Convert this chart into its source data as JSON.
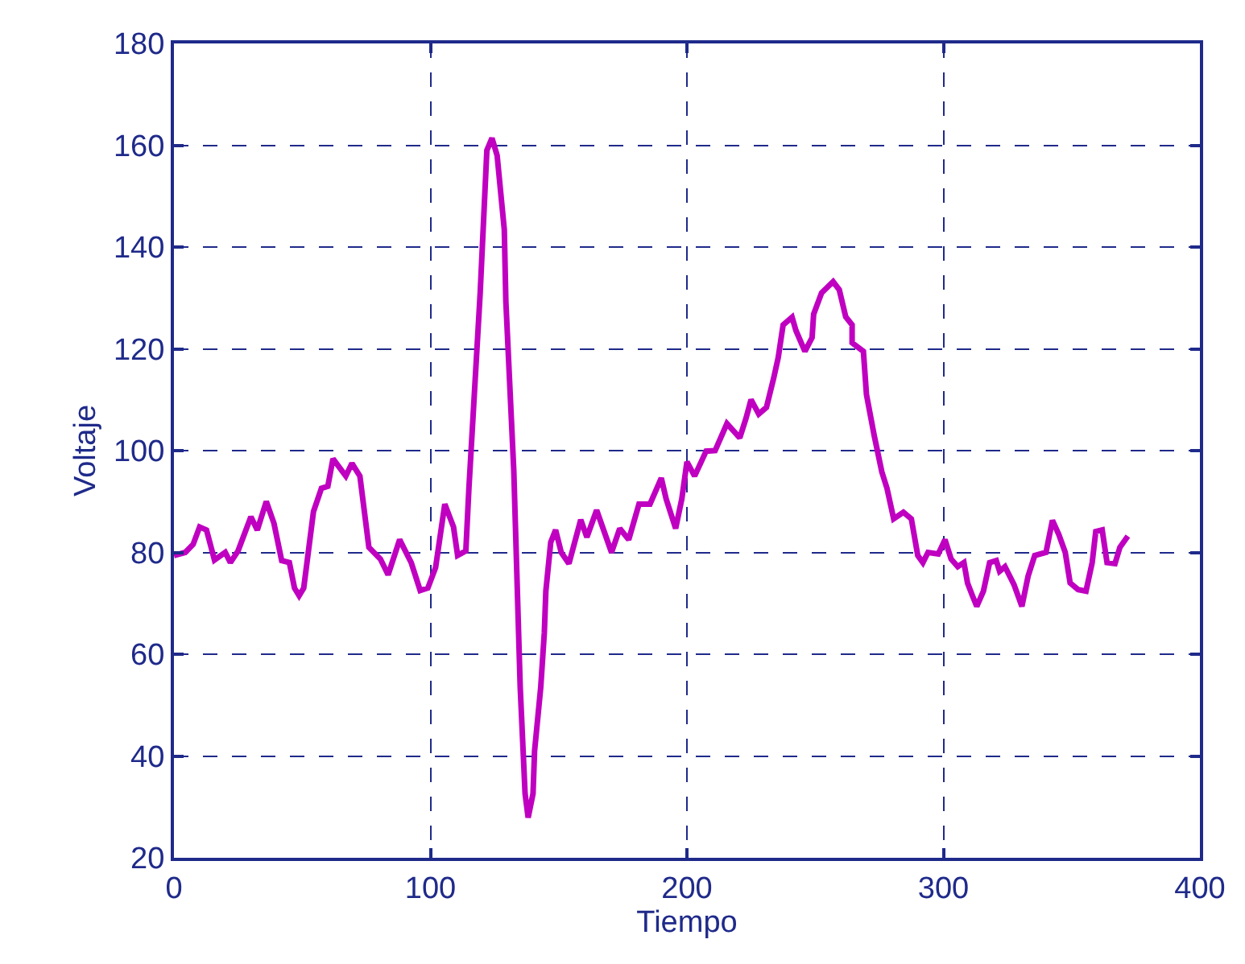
{
  "chart_data": {
    "type": "line",
    "xlabel": "Tiempo",
    "ylabel": "Voltaje",
    "xlim": [
      0,
      400
    ],
    "ylim": [
      20,
      180
    ],
    "xticks": [
      0,
      100,
      200,
      300,
      400
    ],
    "yticks": [
      20,
      40,
      60,
      80,
      100,
      120,
      140,
      160,
      180
    ],
    "grid": true,
    "marker": "none",
    "line_style": "solid",
    "series": [
      {
        "color": "#c000c0",
        "x": [
          0,
          4.4,
          7.5,
          10,
          12.7,
          15.8,
          20,
          22,
          25,
          30,
          32.5,
          36,
          39,
          42,
          45,
          47,
          48.8,
          50.6,
          54.4,
          57.5,
          60,
          62,
          67,
          69.4,
          72.5,
          76,
          80.5,
          83.5,
          88,
          92.5,
          96,
          99,
          102,
          105.6,
          109,
          110.6,
          113.8,
          115,
          119.4,
          122,
          124,
          126,
          128.8,
          129.4,
          132.5,
          135,
          136.9,
          138.1,
          140,
          140.6,
          143,
          144.4,
          145,
          146.9,
          148.8,
          151,
          154,
          158.6,
          161,
          164.8,
          170.6,
          173.8,
          177.3,
          181.3,
          185.6,
          190,
          191.9,
          195.6,
          198,
          200,
          203,
          207.5,
          211,
          215.6,
          220.6,
          223,
          225,
          228,
          231,
          233.8,
          235.6,
          237.5,
          241,
          242.5,
          246,
          248.8,
          249.4,
          252.5,
          257,
          259.4,
          261.9,
          264.4,
          264.4,
          268.8,
          270,
          273,
          276,
          278,
          280.6,
          284.4,
          287.5,
          290,
          292,
          294,
          298,
          300.6,
          303,
          305.6,
          308,
          309.4,
          311.3,
          313,
          315.6,
          318,
          320.6,
          321.9,
          324,
          327.5,
          330.6,
          333,
          335.6,
          340,
          342.5,
          345,
          347.5,
          349.4,
          352.5,
          355.6,
          358,
          359.4,
          361.9,
          363.8,
          366.9,
          368.8,
          371.9
        ],
        "values": [
          79.4,
          80,
          81.6,
          85,
          84.4,
          78.5,
          80,
          78,
          80.3,
          87,
          84.4,
          90,
          85.7,
          78.4,
          78,
          73,
          71.5,
          73,
          88,
          92.6,
          93,
          98.4,
          95,
          97.5,
          95,
          81,
          78.7,
          75.6,
          82.5,
          78,
          72.5,
          73,
          77,
          89.5,
          85,
          79.4,
          80.3,
          92.6,
          131,
          159,
          161.4,
          158,
          143.4,
          129.4,
          96,
          53.5,
          32.6,
          27.9,
          32.6,
          41,
          53.5,
          64.2,
          72.4,
          82,
          84.4,
          80,
          77.8,
          86.4,
          83,
          88.3,
          80,
          84.7,
          82.5,
          89.5,
          89.5,
          94.6,
          90.5,
          84.7,
          90.5,
          97.8,
          95,
          99.9,
          100,
          105.3,
          102.5,
          106.3,
          110,
          107.2,
          108.5,
          114.2,
          118.3,
          124.7,
          126.2,
          123.6,
          119.5,
          122.2,
          126.8,
          131,
          133.2,
          131.6,
          126.3,
          124.7,
          121.2,
          119.5,
          111,
          103,
          95.8,
          92.6,
          86.6,
          87.9,
          86.6,
          79.4,
          78,
          80,
          79.7,
          82.5,
          78.7,
          77.2,
          78,
          74,
          71.5,
          69.4,
          72.4,
          78,
          78.4,
          76.3,
          77.2,
          73.7,
          69.4,
          75.3,
          79.4,
          80,
          86.3,
          83.5,
          80,
          74,
          72.7,
          72.4,
          78,
          84.1,
          84.4,
          78,
          77.8,
          81,
          83.2
        ]
      }
    ]
  }
}
